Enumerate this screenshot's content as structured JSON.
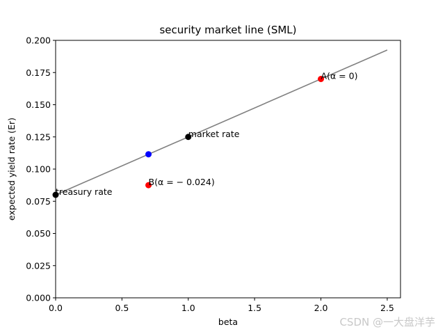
{
  "chart_data": {
    "type": "scatter",
    "title": "security market line (SML)",
    "xlabel": "beta",
    "ylabel": "expected yield rate (Er)",
    "xlim": [
      0.0,
      2.6
    ],
    "ylim": [
      0.0,
      0.2
    ],
    "xticks": [
      0.0,
      0.5,
      1.0,
      1.5,
      2.0,
      2.5
    ],
    "xtick_labels": [
      "0.0",
      "0.5",
      "1.0",
      "1.5",
      "2.0",
      "2.5"
    ],
    "yticks": [
      0.0,
      0.025,
      0.05,
      0.075,
      0.1,
      0.125,
      0.15,
      0.175,
      0.2
    ],
    "ytick_labels": [
      "0.000",
      "0.025",
      "0.050",
      "0.075",
      "0.100",
      "0.125",
      "0.150",
      "0.175",
      "0.200"
    ],
    "grid": false,
    "line": {
      "x": [
        0.0,
        2.5
      ],
      "y": [
        0.08,
        0.1925
      ],
      "color": "#808080"
    },
    "points": [
      {
        "x": 0.0,
        "y": 0.08,
        "color": "#000000"
      },
      {
        "x": 1.0,
        "y": 0.125,
        "color": "#000000"
      },
      {
        "x": 0.7,
        "y": 0.1115,
        "color": "#0000ff"
      },
      {
        "x": 2.0,
        "y": 0.17,
        "color": "#ff0000"
      },
      {
        "x": 0.7,
        "y": 0.0875,
        "color": "#ff0000"
      }
    ],
    "annotations": [
      {
        "text": "treasury rate",
        "x": 0.0,
        "y": 0.08
      },
      {
        "text": "market rate",
        "x": 1.0,
        "y": 0.125
      },
      {
        "text": "A(α = 0)",
        "x": 2.0,
        "y": 0.17
      },
      {
        "text": "B(α = − 0.024)",
        "x": 0.7,
        "y": 0.0875
      }
    ]
  },
  "watermark": "CSDN @一大盘洋芋"
}
